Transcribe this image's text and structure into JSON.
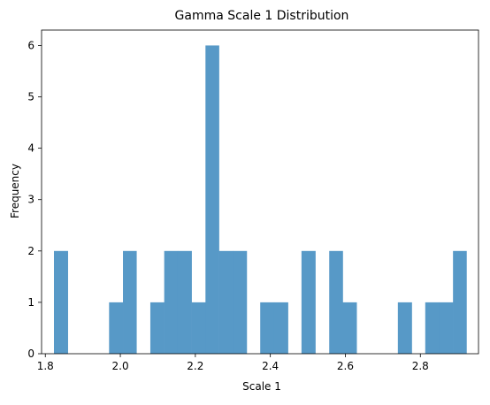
{
  "chart_data": {
    "type": "bar",
    "title": "Gamma Scale 1 Distribution",
    "xlabel": "Scale 1",
    "ylabel": "Frequency",
    "xlim": [
      1.79,
      2.955
    ],
    "ylim": [
      0,
      6.3
    ],
    "x_ticks": [
      1.8,
      2.0,
      2.2,
      2.4,
      2.6,
      2.8
    ],
    "x_tick_labels": [
      "1.8",
      "2.0",
      "2.2",
      "2.4",
      "2.6",
      "2.8"
    ],
    "y_ticks": [
      0,
      1,
      2,
      3,
      4,
      5,
      6
    ],
    "y_tick_labels": [
      "0",
      "1",
      "2",
      "3",
      "4",
      "5",
      "6"
    ],
    "grid": false,
    "bar_color": "#5799c7",
    "bins": [
      {
        "x0": 1.823,
        "x1": 1.86,
        "count": 2
      },
      {
        "x0": 1.86,
        "x1": 1.897,
        "count": 0
      },
      {
        "x0": 1.897,
        "x1": 1.933,
        "count": 0
      },
      {
        "x0": 1.933,
        "x1": 1.97,
        "count": 0
      },
      {
        "x0": 1.97,
        "x1": 2.007,
        "count": 1
      },
      {
        "x0": 2.007,
        "x1": 2.043,
        "count": 2
      },
      {
        "x0": 2.043,
        "x1": 2.08,
        "count": 0
      },
      {
        "x0": 2.08,
        "x1": 2.117,
        "count": 1
      },
      {
        "x0": 2.117,
        "x1": 2.153,
        "count": 2
      },
      {
        "x0": 2.153,
        "x1": 2.19,
        "count": 2
      },
      {
        "x0": 2.19,
        "x1": 2.227,
        "count": 1
      },
      {
        "x0": 2.227,
        "x1": 2.263,
        "count": 6
      },
      {
        "x0": 2.263,
        "x1": 2.3,
        "count": 2
      },
      {
        "x0": 2.3,
        "x1": 2.337,
        "count": 2
      },
      {
        "x0": 2.337,
        "x1": 2.373,
        "count": 0
      },
      {
        "x0": 2.373,
        "x1": 2.41,
        "count": 1
      },
      {
        "x0": 2.41,
        "x1": 2.447,
        "count": 1
      },
      {
        "x0": 2.447,
        "x1": 2.483,
        "count": 0
      },
      {
        "x0": 2.483,
        "x1": 2.52,
        "count": 2
      },
      {
        "x0": 2.52,
        "x1": 2.557,
        "count": 0
      },
      {
        "x0": 2.557,
        "x1": 2.593,
        "count": 2
      },
      {
        "x0": 2.593,
        "x1": 2.63,
        "count": 1
      },
      {
        "x0": 2.63,
        "x1": 2.667,
        "count": 0
      },
      {
        "x0": 2.667,
        "x1": 2.703,
        "count": 0
      },
      {
        "x0": 2.703,
        "x1": 2.74,
        "count": 0
      },
      {
        "x0": 2.74,
        "x1": 2.777,
        "count": 1
      },
      {
        "x0": 2.777,
        "x1": 2.813,
        "count": 0
      },
      {
        "x0": 2.813,
        "x1": 2.85,
        "count": 1
      },
      {
        "x0": 2.85,
        "x1": 2.887,
        "count": 1
      },
      {
        "x0": 2.887,
        "x1": 2.923,
        "count": 2
      }
    ]
  }
}
